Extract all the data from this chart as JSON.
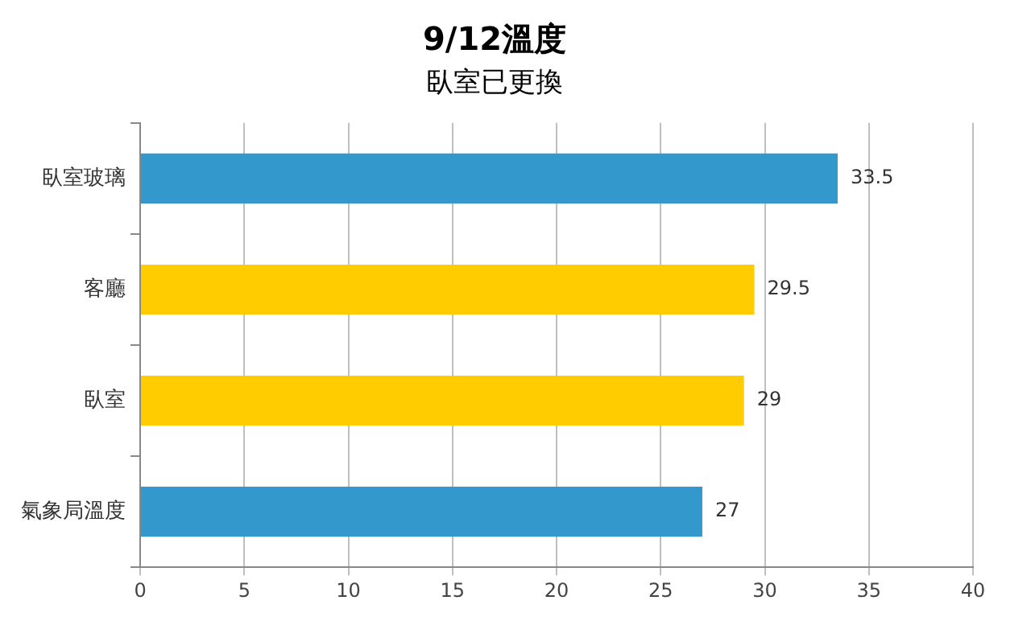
{
  "chart_data": {
    "type": "bar",
    "orientation": "horizontal",
    "title": "9/12溫度",
    "subtitle": "臥室已更換",
    "categories": [
      "臥室玻璃",
      "客廳",
      "臥室",
      "氣象局溫度"
    ],
    "values": [
      33.5,
      29.5,
      29,
      27
    ],
    "colors": [
      "#3399cc",
      "#ffcc00",
      "#ffcc00",
      "#3399cc"
    ],
    "xlim": [
      0,
      40
    ],
    "xticks": [
      0,
      5,
      10,
      15,
      20,
      25,
      30,
      35,
      40
    ],
    "grid": "x",
    "data_labels": true,
    "legend": false
  }
}
